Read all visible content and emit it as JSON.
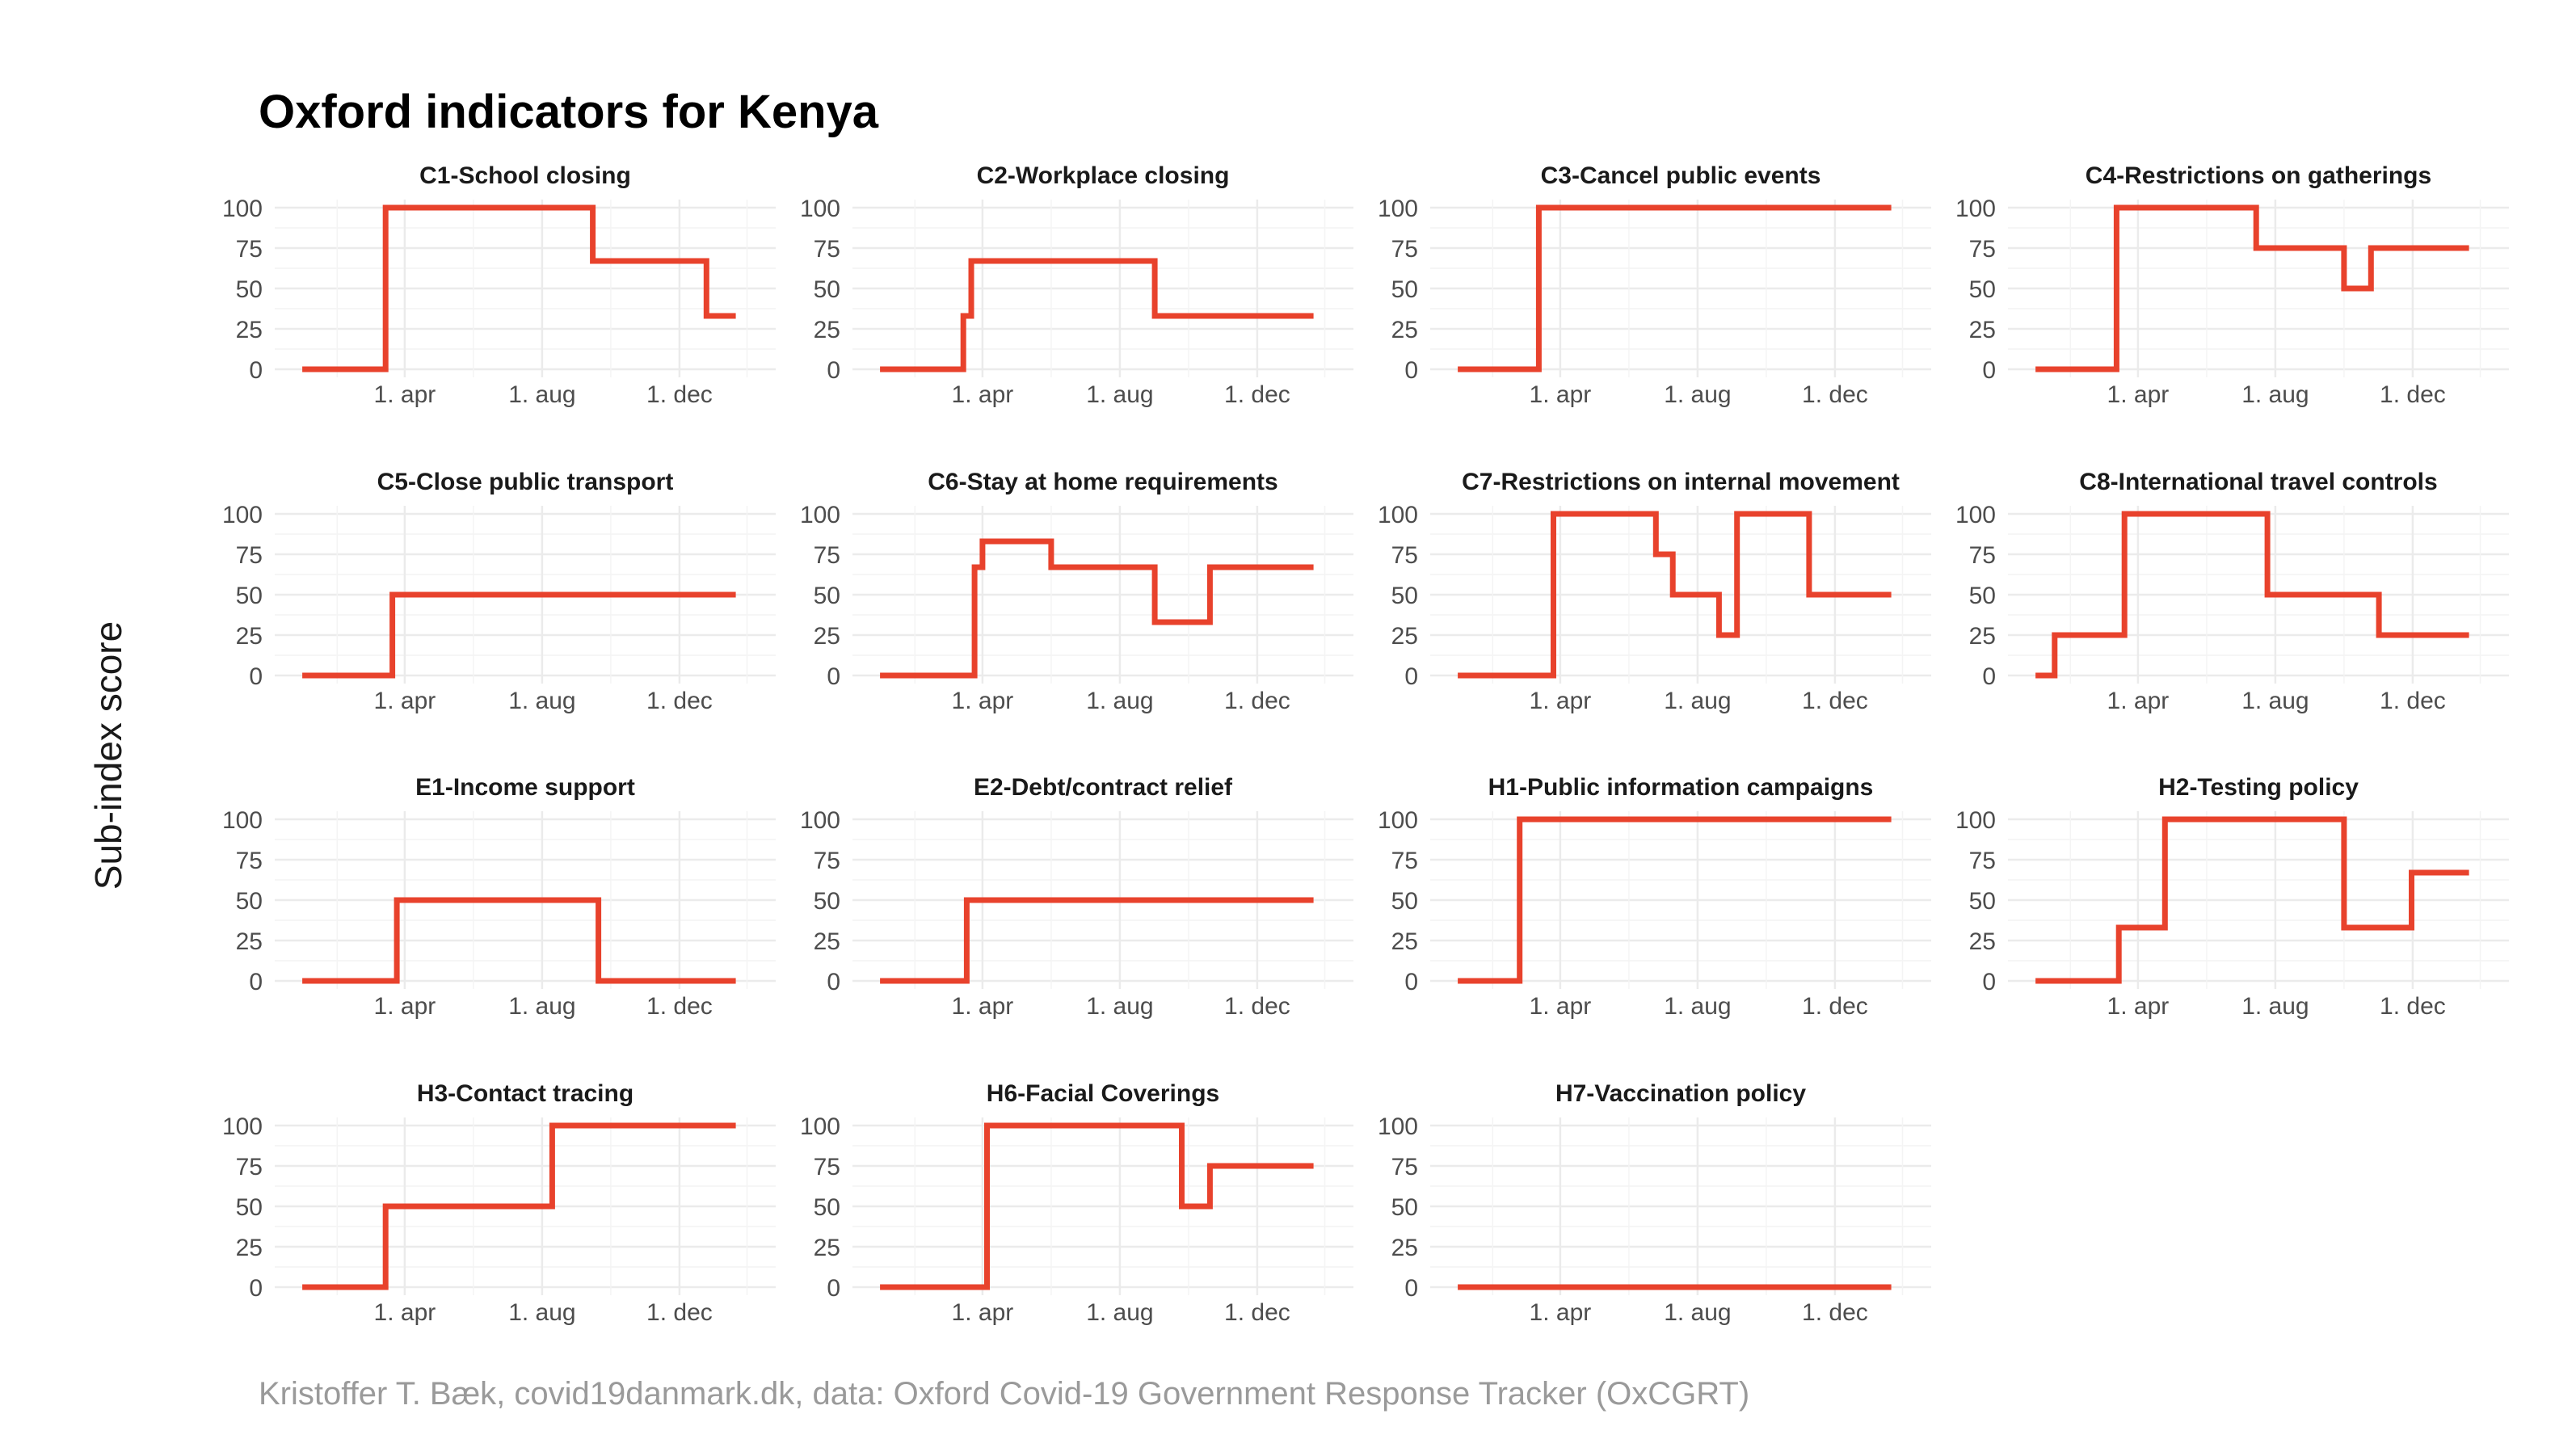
{
  "title": "Oxford indicators for Kenya",
  "ylabel": "Sub-index score",
  "caption": "Kristoffer T. Bæk, covid19danmark.dk, data: Oxford Covid-19 Government Response Tracker (OxCGRT)",
  "colors": {
    "line": "#e8422c",
    "grid": "#ebebeb",
    "title": "#000000",
    "caption": "#9a9a9a"
  },
  "chart_data": {
    "type": "line",
    "layout": "small-multiples",
    "ylim": [
      0,
      100
    ],
    "yticks": [
      0,
      25,
      50,
      75,
      100
    ],
    "xticks": [
      "2020-04-01",
      "2020-08-01",
      "2020-12-01"
    ],
    "xtick_labels": [
      "1. apr",
      "1. aug",
      "1. dec"
    ],
    "xlim": [
      "2020-01-01",
      "2021-01-31"
    ],
    "grid": true,
    "panels": [
      {
        "title": "C1-School closing",
        "steps": [
          [
            "2020-01-01",
            0
          ],
          [
            "2020-03-15",
            100
          ],
          [
            "2020-09-15",
            67
          ],
          [
            "2020-12-25",
            33
          ],
          [
            "2021-01-20",
            33
          ]
        ]
      },
      {
        "title": "C2-Workplace closing",
        "steps": [
          [
            "2020-01-01",
            0
          ],
          [
            "2020-03-15",
            33
          ],
          [
            "2020-03-22",
            67
          ],
          [
            "2020-09-01",
            33
          ],
          [
            "2021-01-20",
            33
          ]
        ]
      },
      {
        "title": "C3-Cancel public events",
        "steps": [
          [
            "2020-01-01",
            0
          ],
          [
            "2020-03-13",
            100
          ],
          [
            "2021-01-20",
            100
          ]
        ]
      },
      {
        "title": "C4-Restrictions on gatherings",
        "steps": [
          [
            "2020-01-01",
            0
          ],
          [
            "2020-03-13",
            100
          ],
          [
            "2020-07-15",
            75
          ],
          [
            "2020-10-01",
            50
          ],
          [
            "2020-10-25",
            75
          ],
          [
            "2021-01-20",
            75
          ]
        ]
      },
      {
        "title": "C5-Close public transport",
        "steps": [
          [
            "2020-01-01",
            0
          ],
          [
            "2020-03-21",
            50
          ],
          [
            "2021-01-20",
            50
          ]
        ]
      },
      {
        "title": "C6-Stay at home requirements",
        "steps": [
          [
            "2020-01-01",
            0
          ],
          [
            "2020-03-25",
            67
          ],
          [
            "2020-04-01",
            83
          ],
          [
            "2020-06-01",
            67
          ],
          [
            "2020-09-01",
            33
          ],
          [
            "2020-10-20",
            67
          ],
          [
            "2021-01-20",
            67
          ]
        ]
      },
      {
        "title": "C7-Restrictions on internal movement",
        "steps": [
          [
            "2020-01-01",
            0
          ],
          [
            "2020-03-26",
            100
          ],
          [
            "2020-06-25",
            75
          ],
          [
            "2020-07-10",
            50
          ],
          [
            "2020-08-20",
            25
          ],
          [
            "2020-09-05",
            100
          ],
          [
            "2020-11-08",
            50
          ],
          [
            "2021-01-20",
            50
          ]
        ]
      },
      {
        "title": "C8-International travel controls",
        "steps": [
          [
            "2020-01-01",
            0
          ],
          [
            "2020-01-18",
            25
          ],
          [
            "2020-03-20",
            100
          ],
          [
            "2020-07-25",
            50
          ],
          [
            "2020-11-01",
            25
          ],
          [
            "2021-01-20",
            25
          ]
        ]
      },
      {
        "title": "E1-Income support",
        "steps": [
          [
            "2020-01-01",
            0
          ],
          [
            "2020-03-25",
            50
          ],
          [
            "2020-09-20",
            0
          ],
          [
            "2021-01-20",
            0
          ]
        ]
      },
      {
        "title": "E2-Debt/contract relief",
        "steps": [
          [
            "2020-01-01",
            0
          ],
          [
            "2020-03-18",
            50
          ],
          [
            "2021-01-20",
            50
          ]
        ]
      },
      {
        "title": "H1-Public information campaigns",
        "steps": [
          [
            "2020-01-01",
            0
          ],
          [
            "2020-02-25",
            100
          ],
          [
            "2021-01-20",
            100
          ]
        ]
      },
      {
        "title": "H2-Testing policy",
        "steps": [
          [
            "2020-01-01",
            0
          ],
          [
            "2020-03-15",
            33
          ],
          [
            "2020-04-25",
            100
          ],
          [
            "2020-10-01",
            33
          ],
          [
            "2020-11-30",
            67
          ],
          [
            "2021-01-20",
            67
          ]
        ]
      },
      {
        "title": "H3-Contact tracing",
        "steps": [
          [
            "2020-01-01",
            0
          ],
          [
            "2020-03-15",
            50
          ],
          [
            "2020-08-10",
            100
          ],
          [
            "2021-01-20",
            100
          ]
        ]
      },
      {
        "title": "H6-Facial Coverings",
        "steps": [
          [
            "2020-01-01",
            0
          ],
          [
            "2020-04-05",
            100
          ],
          [
            "2020-09-25",
            50
          ],
          [
            "2020-10-20",
            75
          ],
          [
            "2021-01-20",
            75
          ]
        ]
      },
      {
        "title": "H7-Vaccination policy",
        "steps": [
          [
            "2020-01-01",
            0
          ],
          [
            "2021-01-20",
            0
          ]
        ]
      }
    ]
  }
}
